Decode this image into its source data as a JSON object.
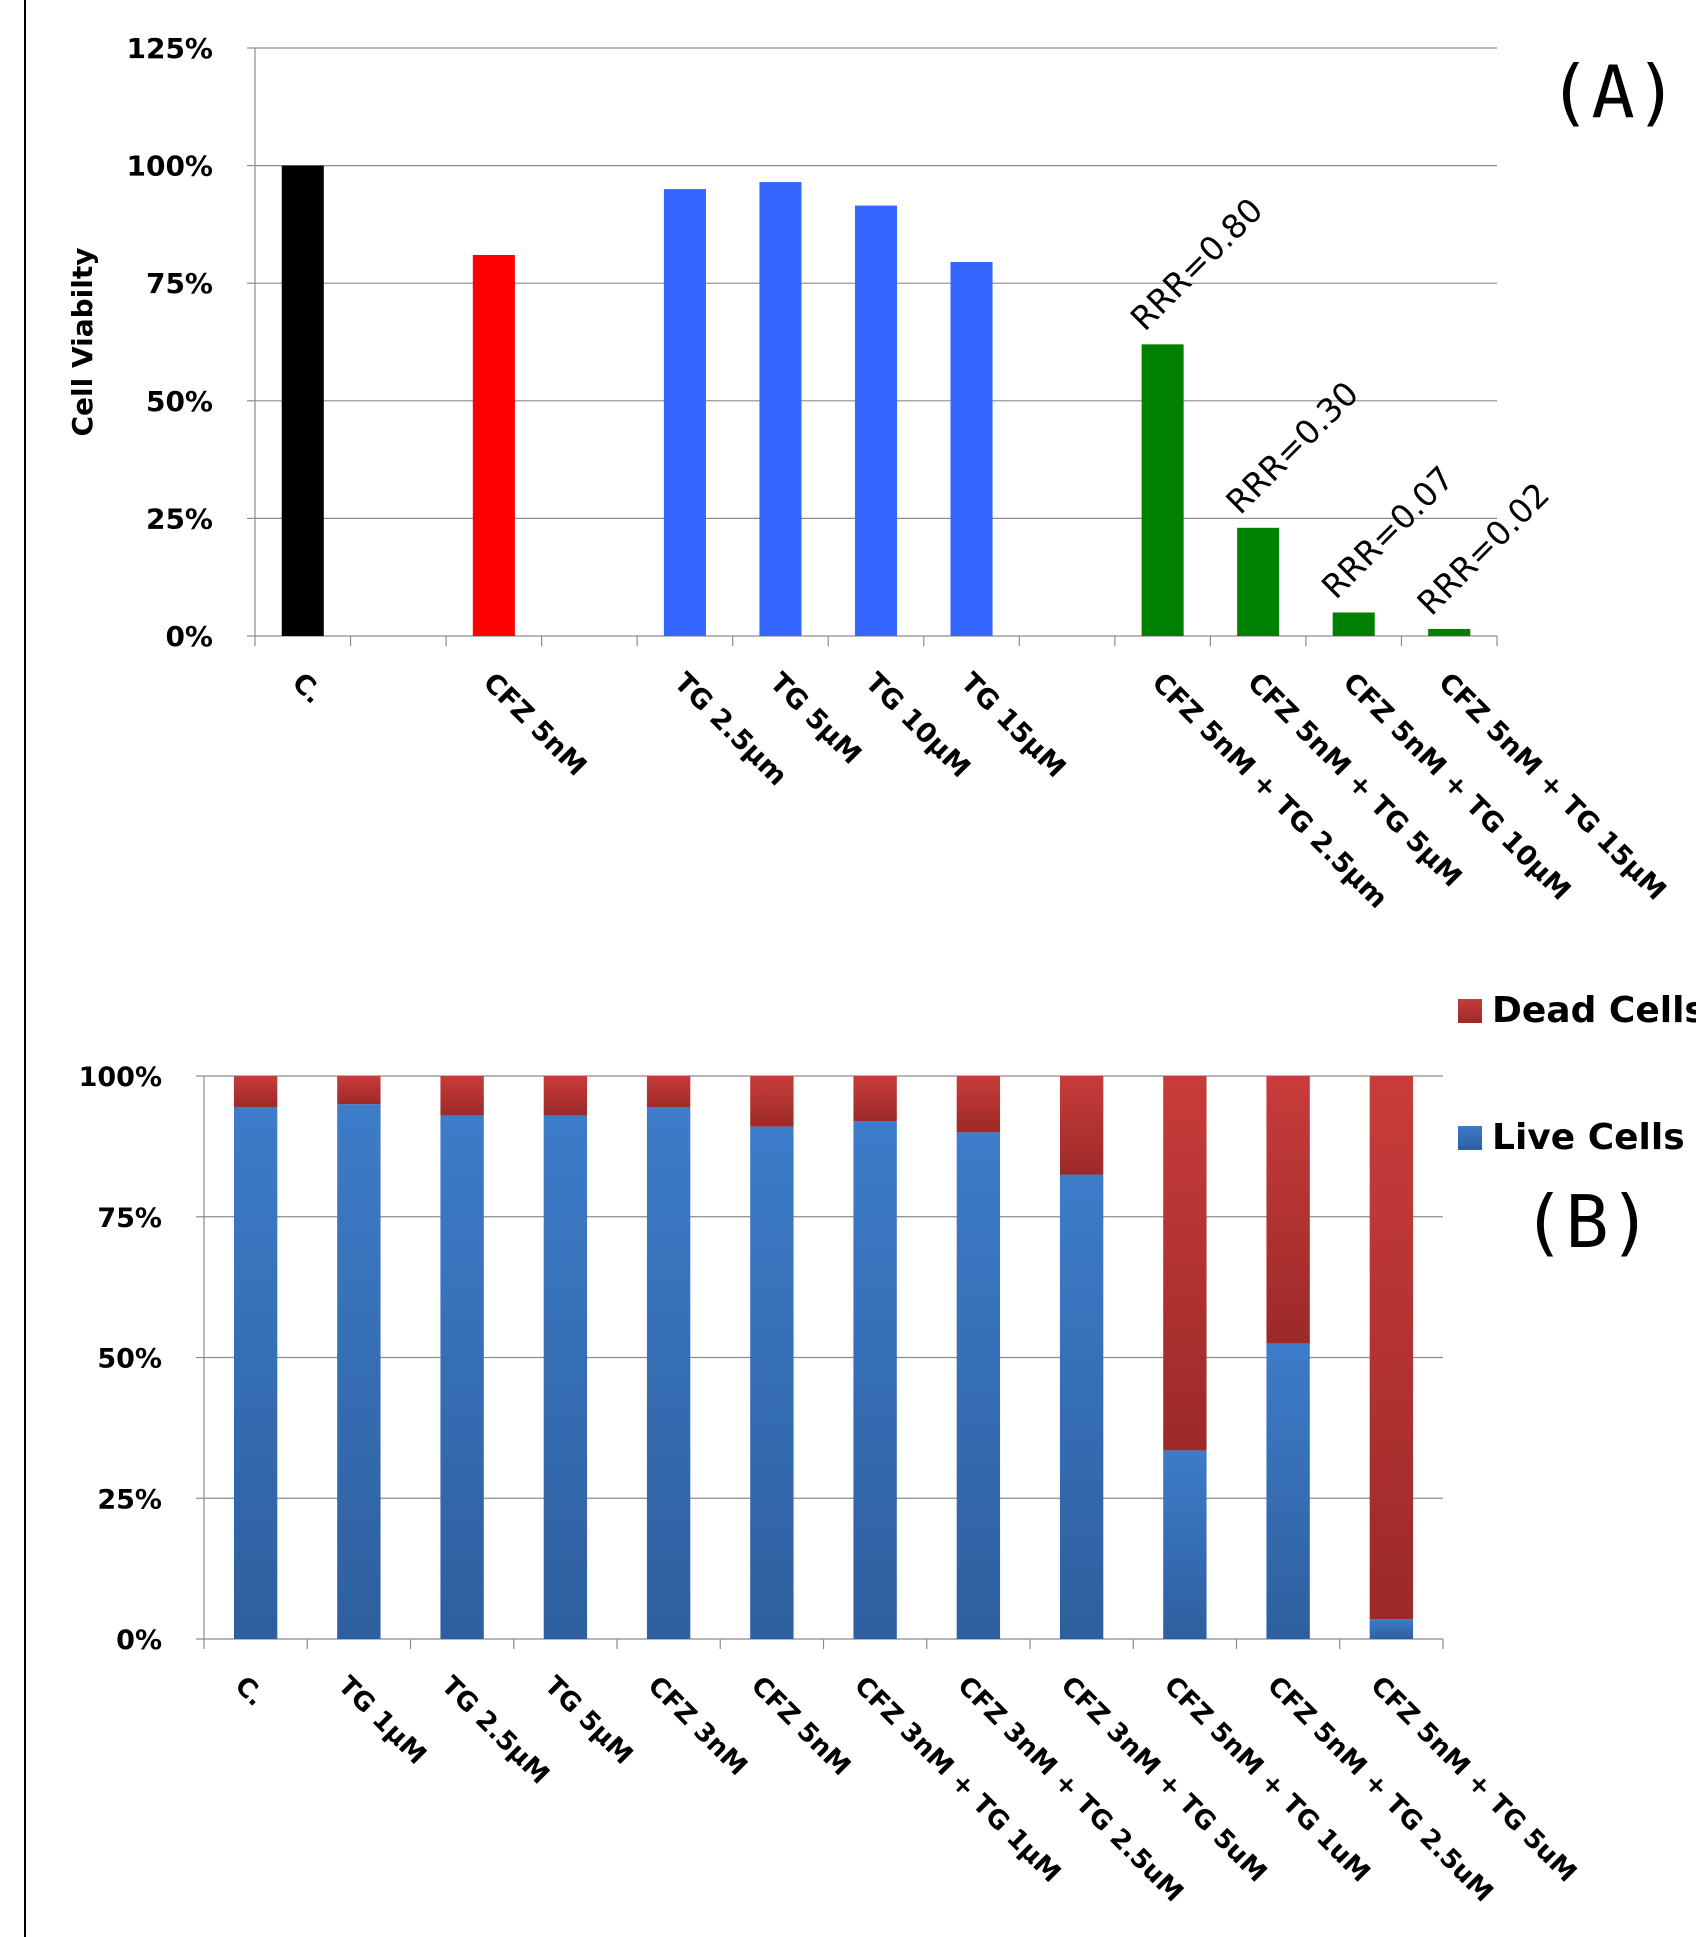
{
  "chart_data": [
    {
      "panel": "(A)",
      "type": "bar",
      "ylabel": "Cell Viabilty",
      "ylim": [
        0,
        125
      ],
      "yticks": [
        "0%",
        "25%",
        "50%",
        "75%",
        "100%",
        "125%"
      ],
      "grid": true,
      "categories": [
        "C.",
        "",
        "CFZ 5nM",
        "",
        "TG 2.5µm",
        "TG 5µM",
        "TG 10µM",
        "TG 15µM",
        "",
        "CFZ 5nM + TG 2.5µm",
        "CFZ 5nM + TG 5µM",
        "CFZ 5nM + TG 10µM",
        "CFZ 5nM + TG 15µM"
      ],
      "values": [
        100,
        null,
        81,
        null,
        95,
        96.5,
        91.5,
        79.5,
        null,
        62,
        23,
        5,
        1.5
      ],
      "colors": [
        "#000000",
        null,
        "#ff0000",
        null,
        "#3366ff",
        "#3366ff",
        "#3366ff",
        "#3366ff",
        null,
        "#008000",
        "#008000",
        "#008000",
        "#008000"
      ],
      "annotations": [
        "",
        "",
        "",
        "",
        "",
        "",
        "",
        "",
        "",
        "RRR=0.80",
        "RRR=0.30",
        "RRR=0.07",
        "RRR=0.02"
      ]
    },
    {
      "panel": "(B)",
      "type": "bar",
      "stacked": true,
      "ylim": [
        0,
        100
      ],
      "yticks": [
        "0%",
        "25%",
        "50%",
        "75%",
        "100%"
      ],
      "grid": true,
      "legend_position": "right",
      "categories": [
        "C.",
        "TG 1µM",
        "TG 2.5µM",
        "TG 5µM",
        "CFZ 3nM",
        "CFZ 5nM",
        "CFZ 3nM + TG 1µM",
        "CFZ 3nM + TG 2.5uM",
        "CFZ 3nM + TG 5uM",
        "CFZ 5nM + TG 1uM",
        "CFZ 5nM + TG 2.5uM",
        "CFZ 5nM + TG 5uM"
      ],
      "series": [
        {
          "name": "Live Cells",
          "color": "#3a6fb8",
          "values": [
            94.5,
            95,
            93,
            93,
            94.5,
            91,
            92,
            90,
            82.5,
            33.5,
            52.5,
            3.5
          ]
        },
        {
          "name": "Dead Cells",
          "color": "#c13a39",
          "values": [
            5.5,
            5,
            7,
            7,
            5.5,
            9,
            8,
            10,
            17.5,
            66.5,
            47.5,
            96.5
          ]
        }
      ]
    }
  ],
  "legend": {
    "dead": "Dead Cells",
    "live": "Live Cells",
    "dead_color": "#c13a39",
    "live_color": "#3a6fb8"
  },
  "panel_labels": {
    "a": "(A)",
    "b": "(B)"
  }
}
